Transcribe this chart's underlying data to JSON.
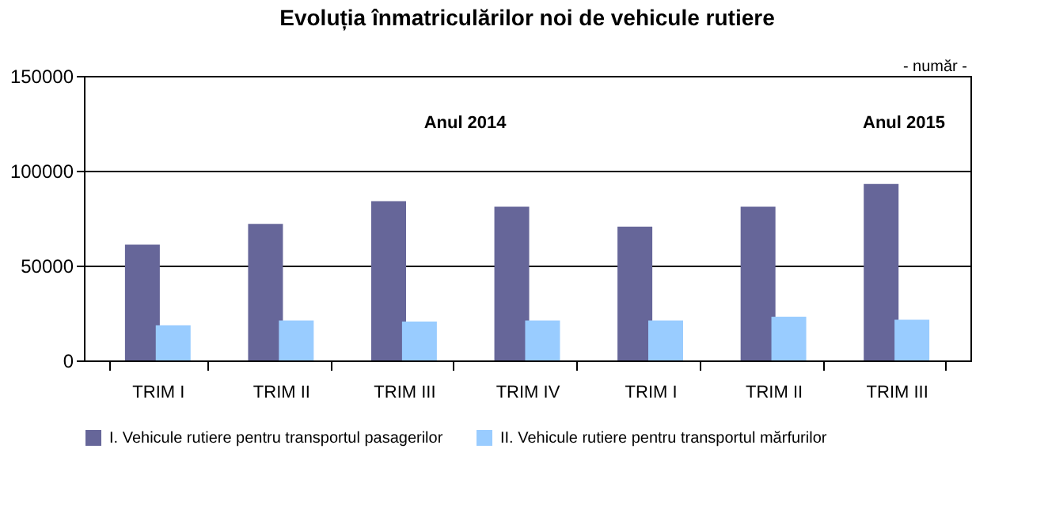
{
  "chart_data": {
    "type": "bar",
    "title": "Evoluția înmatriculărilor noi de vehicule rutiere",
    "categories": [
      "TRIM I",
      "TRIM II",
      "TRIM III",
      "TRIM IV",
      "TRIM I",
      "TRIM II",
      "TRIM III"
    ],
    "series": [
      {
        "name": "I. Vehicule rutiere pentru transportul pasagerilor",
        "color": "#666699",
        "values": [
          61000,
          72000,
          84000,
          81000,
          70500,
          81000,
          93000
        ]
      },
      {
        "name": "II. Vehicule rutiere pentru transportul mărfurilor",
        "color": "#99ccff",
        "values": [
          18500,
          21000,
          20500,
          21000,
          21000,
          23000,
          21500
        ]
      }
    ],
    "ylim": [
      0,
      150000
    ],
    "yticks": [
      0,
      50000,
      100000,
      150000
    ],
    "grid": "y",
    "legend": "bottom",
    "annotations": [
      "- număr -",
      "Anul 2014",
      "Anul 2015"
    ]
  }
}
